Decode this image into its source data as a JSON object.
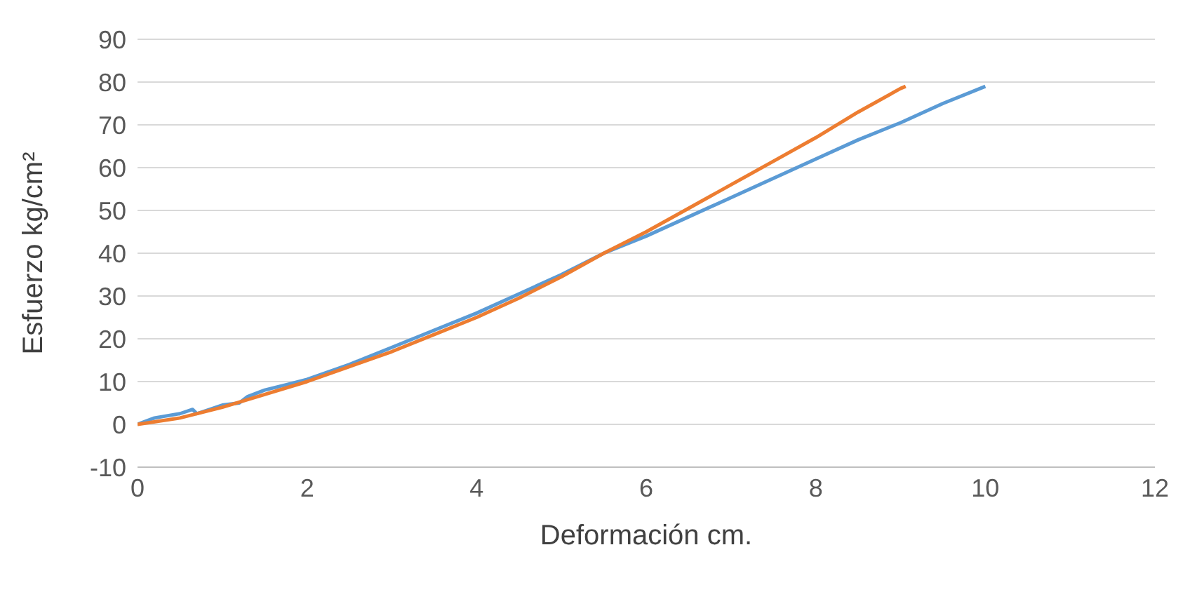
{
  "chart_data": {
    "type": "line",
    "xlabel": "Deformación cm.",
    "ylabel": "Esfuerzo kg/cm²",
    "xlim": [
      0,
      12
    ],
    "xticks": [
      0,
      2,
      4,
      6,
      8,
      10,
      12
    ],
    "ylim": [
      -10,
      90
    ],
    "yticks": [
      -10,
      0,
      10,
      20,
      30,
      40,
      50,
      60,
      70,
      80,
      90
    ],
    "grid": "y",
    "marker": "none",
    "line_style": "solid",
    "series": [
      {
        "color": "#5b9bd5",
        "x": [
          0,
          0.2,
          0.5,
          0.65,
          0.7,
          1,
          1.2,
          1.3,
          1.5,
          1.8,
          2,
          2.5,
          3,
          3.5,
          4,
          4.5,
          5,
          5.5,
          6,
          6.5,
          7,
          7.5,
          8,
          8.5,
          9,
          9.5,
          10
        ],
        "values": [
          0,
          1.5,
          2.5,
          3.5,
          2.5,
          4.5,
          5,
          6.5,
          8,
          9.5,
          10.5,
          14,
          18,
          22,
          26,
          30.5,
          35,
          40,
          44,
          48.5,
          53,
          57.5,
          62,
          66.5,
          70.5,
          75,
          79
        ]
      },
      {
        "color": "#ed7d31",
        "x": [
          0,
          0.5,
          1,
          1.5,
          2,
          2.5,
          3,
          3.5,
          4,
          4.5,
          5,
          5.5,
          6,
          6.5,
          7,
          7.5,
          8,
          8.5,
          9,
          9.06
        ],
        "values": [
          0,
          1.5,
          4,
          7,
          10,
          13.5,
          17,
          21,
          25,
          29.5,
          34.5,
          40,
          45,
          50.5,
          56,
          61.5,
          67,
          73,
          78.5,
          79
        ]
      }
    ]
  }
}
